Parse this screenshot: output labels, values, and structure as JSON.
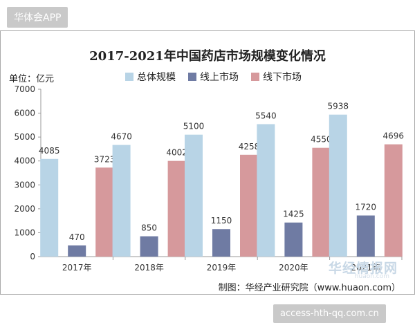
{
  "header": {
    "app_badge": "华体会APP"
  },
  "footer": {
    "site_badge": "access-hth-qq.com.cn"
  },
  "watermark": {
    "text": "华经情报网",
    "sub": "huaon.com"
  },
  "chart_data": {
    "type": "bar",
    "title": "2017-2021年中国药店市场规模变化情况",
    "unit_label": "单位：亿元",
    "source": "制图：华经产业研究院（www.huaon.com）",
    "categories": [
      "2017年",
      "2018年",
      "2019年",
      "2020年",
      "2021年"
    ],
    "series": [
      {
        "name": "总体规模",
        "color": "#b8d4e6",
        "values": [
          4085,
          4670,
          5100,
          5540,
          5938
        ]
      },
      {
        "name": "线上市场",
        "color": "#6f7ba3",
        "values": [
          470,
          850,
          1150,
          1425,
          1720
        ]
      },
      {
        "name": "线下市场",
        "color": "#d6999c",
        "values": [
          3723,
          4002,
          4258,
          4550,
          4696
        ]
      }
    ],
    "ylim": [
      0,
      7000
    ],
    "yticks": [
      0,
      1000,
      2000,
      3000,
      4000,
      5000,
      6000,
      7000
    ],
    "grid": false,
    "legend_position": "top"
  }
}
